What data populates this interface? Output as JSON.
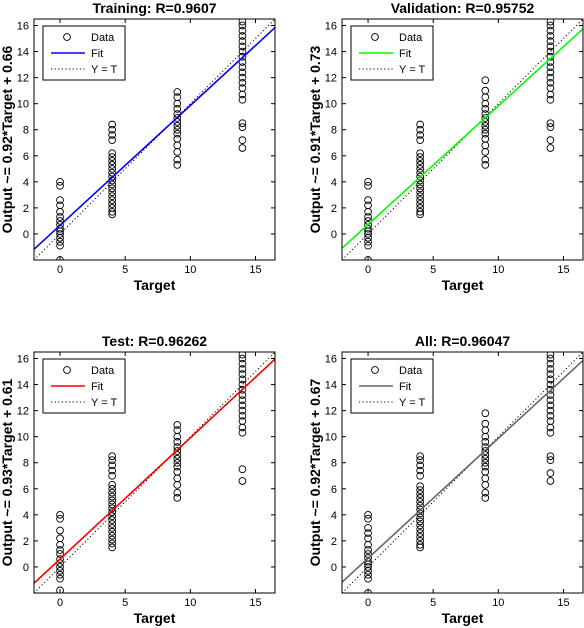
{
  "chart_data": [
    {
      "type": "scatter",
      "title": "Training: R=0.9607",
      "xlabel": "Target",
      "ylabel": "Output ~= 0.92*Target + 0.66",
      "xlim": [
        -2,
        16.5
      ],
      "ylim": [
        -2,
        16.5
      ],
      "xticks": [
        0,
        5,
        10,
        15
      ],
      "yticks": [
        0,
        2,
        4,
        6,
        8,
        10,
        12,
        14,
        16
      ],
      "grid": false,
      "legend_position": "top-left",
      "legend": [
        "Data",
        "Fit",
        "Y = T"
      ],
      "fit": {
        "slope": 0.92,
        "intercept": 0.66,
        "color": "#0000ff"
      },
      "points": [
        [
          0,
          -2
        ],
        [
          0,
          -0.9
        ],
        [
          0,
          -0.6
        ],
        [
          0,
          -0.3
        ],
        [
          0,
          0
        ],
        [
          0,
          0.2
        ],
        [
          0,
          0.4
        ],
        [
          0,
          0.7
        ],
        [
          0,
          1.0
        ],
        [
          0,
          1.3
        ],
        [
          0,
          1.7
        ],
        [
          0,
          2.2
        ],
        [
          0,
          2.6
        ],
        [
          0,
          3.7
        ],
        [
          0,
          4.0
        ],
        [
          4,
          1.5
        ],
        [
          4,
          1.7
        ],
        [
          4,
          2.0
        ],
        [
          4,
          2.3
        ],
        [
          4,
          2.6
        ],
        [
          4,
          2.9
        ],
        [
          4,
          3.2
        ],
        [
          4,
          3.5
        ],
        [
          4,
          3.8
        ],
        [
          4,
          4.1
        ],
        [
          4,
          4.4
        ],
        [
          4,
          4.7
        ],
        [
          4,
          5.0
        ],
        [
          4,
          5.3
        ],
        [
          4,
          5.6
        ],
        [
          4,
          5.9
        ],
        [
          4,
          6.2
        ],
        [
          4,
          7.2
        ],
        [
          4,
          7.6
        ],
        [
          4,
          8.0
        ],
        [
          4,
          8.4
        ],
        [
          9,
          5.3
        ],
        [
          9,
          5.7
        ],
        [
          9,
          6.3
        ],
        [
          9,
          6.8
        ],
        [
          9,
          7.3
        ],
        [
          9,
          7.7
        ],
        [
          9,
          8.0
        ],
        [
          9,
          8.3
        ],
        [
          9,
          8.6
        ],
        [
          9,
          8.9
        ],
        [
          9,
          9.2
        ],
        [
          9,
          9.6
        ],
        [
          9,
          10.0
        ],
        [
          9,
          10.5
        ],
        [
          9,
          10.9
        ],
        [
          14,
          6.6
        ],
        [
          14,
          7.2
        ],
        [
          14,
          8.2
        ],
        [
          14,
          8.5
        ],
        [
          14,
          10.3
        ],
        [
          14,
          10.7
        ],
        [
          14,
          11.2
        ],
        [
          14,
          11.6
        ],
        [
          14,
          12.0
        ],
        [
          14,
          12.4
        ],
        [
          14,
          12.8
        ],
        [
          14,
          13.2
        ],
        [
          14,
          13.6
        ],
        [
          14,
          14.0
        ],
        [
          14,
          14.4
        ],
        [
          14,
          14.8
        ],
        [
          14,
          15.2
        ],
        [
          14,
          15.6
        ],
        [
          14,
          16.0
        ],
        [
          14,
          16.3
        ]
      ]
    },
    {
      "type": "scatter",
      "title": "Validation: R=0.95752",
      "xlabel": "Target",
      "ylabel": "Output ~= 0.91*Target + 0.73",
      "xlim": [
        -2,
        16.5
      ],
      "ylim": [
        -2,
        16.5
      ],
      "xticks": [
        0,
        5,
        10,
        15
      ],
      "yticks": [
        0,
        2,
        4,
        6,
        8,
        10,
        12,
        14,
        16
      ],
      "grid": false,
      "legend_position": "top-left",
      "legend": [
        "Data",
        "Fit",
        "Y = T"
      ],
      "fit": {
        "slope": 0.91,
        "intercept": 0.73,
        "color": "#00ff00"
      },
      "points": [
        [
          0,
          -2
        ],
        [
          0,
          -0.9
        ],
        [
          0,
          -0.6
        ],
        [
          0,
          -0.3
        ],
        [
          0,
          0
        ],
        [
          0,
          0.2
        ],
        [
          0,
          0.4
        ],
        [
          0,
          0.7
        ],
        [
          0,
          1.0
        ],
        [
          0,
          1.3
        ],
        [
          0,
          1.7
        ],
        [
          0,
          2.2
        ],
        [
          0,
          2.6
        ],
        [
          0,
          3.7
        ],
        [
          0,
          4.0
        ],
        [
          4,
          1.5
        ],
        [
          4,
          1.7
        ],
        [
          4,
          2.0
        ],
        [
          4,
          2.3
        ],
        [
          4,
          2.6
        ],
        [
          4,
          2.9
        ],
        [
          4,
          3.2
        ],
        [
          4,
          3.5
        ],
        [
          4,
          3.8
        ],
        [
          4,
          4.1
        ],
        [
          4,
          4.4
        ],
        [
          4,
          4.7
        ],
        [
          4,
          5.0
        ],
        [
          4,
          5.3
        ],
        [
          4,
          5.6
        ],
        [
          4,
          5.9
        ],
        [
          4,
          6.2
        ],
        [
          4,
          7.2
        ],
        [
          4,
          7.6
        ],
        [
          4,
          8.0
        ],
        [
          4,
          8.4
        ],
        [
          9,
          5.3
        ],
        [
          9,
          5.7
        ],
        [
          9,
          6.3
        ],
        [
          9,
          6.8
        ],
        [
          9,
          7.3
        ],
        [
          9,
          7.7
        ],
        [
          9,
          8.0
        ],
        [
          9,
          8.3
        ],
        [
          9,
          8.6
        ],
        [
          9,
          8.9
        ],
        [
          9,
          9.2
        ],
        [
          9,
          9.6
        ],
        [
          9,
          10.0
        ],
        [
          9,
          10.5
        ],
        [
          9,
          11.0
        ],
        [
          9,
          11.8
        ],
        [
          14,
          6.6
        ],
        [
          14,
          7.2
        ],
        [
          14,
          8.2
        ],
        [
          14,
          8.5
        ],
        [
          14,
          10.3
        ],
        [
          14,
          10.7
        ],
        [
          14,
          11.2
        ],
        [
          14,
          11.6
        ],
        [
          14,
          12.0
        ],
        [
          14,
          12.4
        ],
        [
          14,
          12.8
        ],
        [
          14,
          13.2
        ],
        [
          14,
          13.6
        ],
        [
          14,
          14.0
        ],
        [
          14,
          14.4
        ],
        [
          14,
          14.8
        ],
        [
          14,
          15.2
        ],
        [
          14,
          15.6
        ],
        [
          14,
          16.0
        ],
        [
          14,
          16.3
        ]
      ]
    },
    {
      "type": "scatter",
      "title": "Test: R=0.96262",
      "xlabel": "Target",
      "ylabel": "Output ~= 0.93*Target + 0.61",
      "xlim": [
        -2,
        16.5
      ],
      "ylim": [
        -2,
        16.5
      ],
      "xticks": [
        0,
        5,
        10,
        15
      ],
      "yticks": [
        0,
        2,
        4,
        6,
        8,
        10,
        12,
        14,
        16
      ],
      "grid": false,
      "legend_position": "top-left",
      "legend": [
        "Data",
        "Fit",
        "Y = T"
      ],
      "fit": {
        "slope": 0.93,
        "intercept": 0.61,
        "color": "#ff0000"
      },
      "points": [
        [
          0,
          -1.8
        ],
        [
          0,
          -0.9
        ],
        [
          0,
          -0.6
        ],
        [
          0,
          -0.3
        ],
        [
          0,
          0
        ],
        [
          0,
          0.3
        ],
        [
          0,
          0.6
        ],
        [
          0,
          1.0
        ],
        [
          0,
          1.3
        ],
        [
          0,
          1.7
        ],
        [
          0,
          2.2
        ],
        [
          0,
          2.8
        ],
        [
          0,
          3.7
        ],
        [
          0,
          4.0
        ],
        [
          4,
          1.5
        ],
        [
          4,
          1.8
        ],
        [
          4,
          2.1
        ],
        [
          4,
          2.4
        ],
        [
          4,
          2.7
        ],
        [
          4,
          3.0
        ],
        [
          4,
          3.3
        ],
        [
          4,
          3.6
        ],
        [
          4,
          3.9
        ],
        [
          4,
          4.2
        ],
        [
          4,
          4.5
        ],
        [
          4,
          4.8
        ],
        [
          4,
          5.1
        ],
        [
          4,
          5.4
        ],
        [
          4,
          5.7
        ],
        [
          4,
          6.0
        ],
        [
          4,
          6.3
        ],
        [
          4,
          7.0
        ],
        [
          4,
          7.4
        ],
        [
          4,
          7.8
        ],
        [
          4,
          8.2
        ],
        [
          4,
          8.5
        ],
        [
          9,
          5.3
        ],
        [
          9,
          5.7
        ],
        [
          9,
          6.3
        ],
        [
          9,
          6.8
        ],
        [
          9,
          7.3
        ],
        [
          9,
          7.7
        ],
        [
          9,
          8.0
        ],
        [
          9,
          8.3
        ],
        [
          9,
          8.6
        ],
        [
          9,
          8.9
        ],
        [
          9,
          9.2
        ],
        [
          9,
          9.6
        ],
        [
          9,
          10.0
        ],
        [
          9,
          10.5
        ],
        [
          9,
          10.9
        ],
        [
          14,
          6.6
        ],
        [
          14,
          7.5
        ],
        [
          14,
          10.3
        ],
        [
          14,
          10.7
        ],
        [
          14,
          11.2
        ],
        [
          14,
          11.6
        ],
        [
          14,
          12.0
        ],
        [
          14,
          12.4
        ],
        [
          14,
          12.8
        ],
        [
          14,
          13.2
        ],
        [
          14,
          13.6
        ],
        [
          14,
          14.0
        ],
        [
          14,
          14.4
        ],
        [
          14,
          14.8
        ],
        [
          14,
          15.2
        ],
        [
          14,
          15.6
        ],
        [
          14,
          16.0
        ],
        [
          14,
          16.3
        ]
      ]
    },
    {
      "type": "scatter",
      "title": "All: R=0.96047",
      "xlabel": "Target",
      "ylabel": "Output ~= 0.92*Target + 0.67",
      "xlim": [
        -2,
        16.5
      ],
      "ylim": [
        -2,
        16.5
      ],
      "xticks": [
        0,
        5,
        10,
        15
      ],
      "yticks": [
        0,
        2,
        4,
        6,
        8,
        10,
        12,
        14,
        16
      ],
      "grid": false,
      "legend_position": "top-left",
      "legend": [
        "Data",
        "Fit",
        "Y = T"
      ],
      "fit": {
        "slope": 0.92,
        "intercept": 0.67,
        "color": "#666666"
      },
      "points": [
        [
          0,
          -2
        ],
        [
          0,
          -0.9
        ],
        [
          0,
          -0.6
        ],
        [
          0,
          -0.3
        ],
        [
          0,
          0
        ],
        [
          0,
          0.2
        ],
        [
          0,
          0.4
        ],
        [
          0,
          0.7
        ],
        [
          0,
          1.0
        ],
        [
          0,
          1.3
        ],
        [
          0,
          1.7
        ],
        [
          0,
          2.2
        ],
        [
          0,
          2.6
        ],
        [
          0,
          3.0
        ],
        [
          0,
          3.7
        ],
        [
          0,
          4.0
        ],
        [
          4,
          1.5
        ],
        [
          4,
          1.7
        ],
        [
          4,
          2.0
        ],
        [
          4,
          2.3
        ],
        [
          4,
          2.6
        ],
        [
          4,
          2.9
        ],
        [
          4,
          3.2
        ],
        [
          4,
          3.5
        ],
        [
          4,
          3.8
        ],
        [
          4,
          4.1
        ],
        [
          4,
          4.4
        ],
        [
          4,
          4.7
        ],
        [
          4,
          5.0
        ],
        [
          4,
          5.3
        ],
        [
          4,
          5.6
        ],
        [
          4,
          5.9
        ],
        [
          4,
          6.2
        ],
        [
          4,
          7.0
        ],
        [
          4,
          7.4
        ],
        [
          4,
          7.8
        ],
        [
          4,
          8.2
        ],
        [
          4,
          8.5
        ],
        [
          9,
          5.3
        ],
        [
          9,
          5.7
        ],
        [
          9,
          6.3
        ],
        [
          9,
          6.8
        ],
        [
          9,
          7.3
        ],
        [
          9,
          7.7
        ],
        [
          9,
          8.0
        ],
        [
          9,
          8.3
        ],
        [
          9,
          8.6
        ],
        [
          9,
          8.9
        ],
        [
          9,
          9.2
        ],
        [
          9,
          9.6
        ],
        [
          9,
          10.0
        ],
        [
          9,
          10.5
        ],
        [
          9,
          11.0
        ],
        [
          9,
          11.8
        ],
        [
          14,
          6.6
        ],
        [
          14,
          7.2
        ],
        [
          14,
          8.2
        ],
        [
          14,
          8.5
        ],
        [
          14,
          10.3
        ],
        [
          14,
          10.7
        ],
        [
          14,
          11.2
        ],
        [
          14,
          11.6
        ],
        [
          14,
          12.0
        ],
        [
          14,
          12.4
        ],
        [
          14,
          12.8
        ],
        [
          14,
          13.2
        ],
        [
          14,
          13.6
        ],
        [
          14,
          14.0
        ],
        [
          14,
          14.4
        ],
        [
          14,
          14.8
        ],
        [
          14,
          15.2
        ],
        [
          14,
          15.6
        ],
        [
          14,
          16.0
        ],
        [
          14,
          16.3
        ]
      ]
    }
  ]
}
